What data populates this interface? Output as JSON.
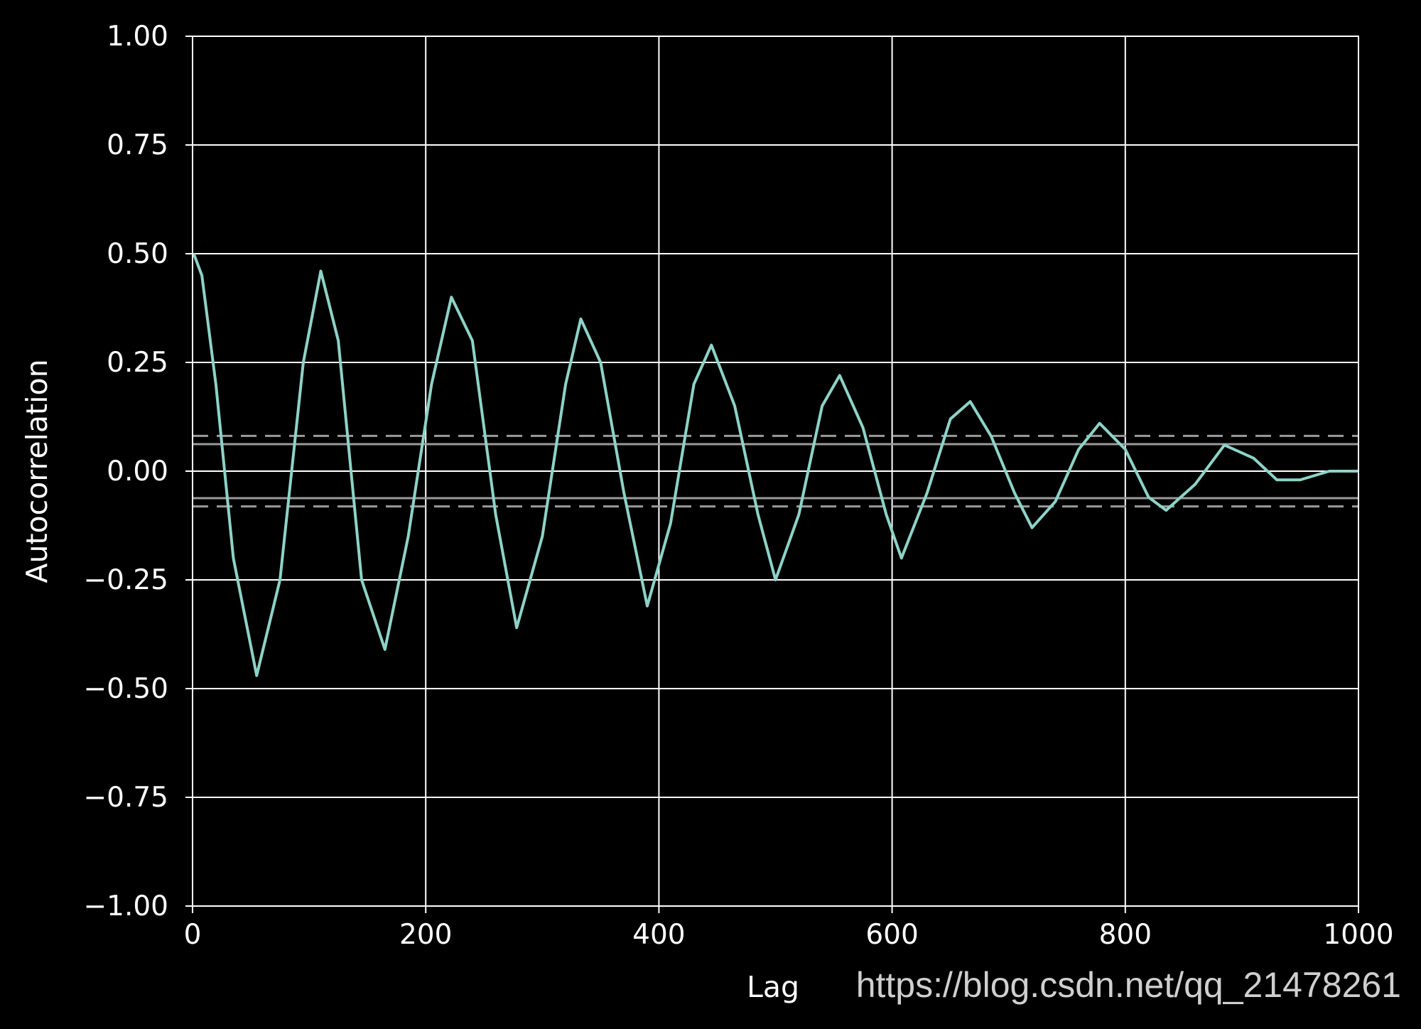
{
  "chart_data": {
    "type": "line",
    "title": "",
    "xlabel": "Lag",
    "ylabel": "Autocorrelation",
    "xlim": [
      0,
      1000
    ],
    "ylim": [
      -1.0,
      1.0
    ],
    "x_ticks": [
      0,
      200,
      400,
      600,
      800,
      1000
    ],
    "x_tick_labels": [
      "0",
      "200",
      "400",
      "600",
      "800",
      "1000"
    ],
    "y_ticks": [
      1.0,
      0.75,
      0.5,
      0.25,
      0.0,
      -0.25,
      -0.5,
      -0.75,
      -1.0
    ],
    "y_tick_labels": [
      "1.00",
      "0.75",
      "0.50",
      "0.25",
      "0.00",
      "−0.25",
      "−0.50",
      "−0.75",
      "−1.00"
    ],
    "grid": true,
    "confidence_bands": {
      "solid": [
        0.062,
        -0.062
      ],
      "dashed": [
        0.081,
        -0.081
      ]
    },
    "series": [
      {
        "color": "#8dd3c7",
        "x": [
          1,
          8,
          20,
          35,
          55,
          75,
          95,
          110,
          125,
          145,
          165,
          185,
          205,
          222,
          240,
          260,
          278,
          300,
          320,
          333,
          350,
          370,
          390,
          410,
          430,
          445,
          465,
          485,
          500,
          520,
          540,
          555,
          575,
          595,
          608,
          630,
          650,
          667,
          685,
          705,
          720,
          740,
          760,
          778,
          800,
          820,
          835,
          860,
          885,
          910,
          930,
          950,
          975,
          1000
        ],
        "y": [
          0.5,
          0.45,
          0.2,
          -0.2,
          -0.47,
          -0.25,
          0.25,
          0.46,
          0.3,
          -0.25,
          -0.41,
          -0.15,
          0.2,
          0.4,
          0.3,
          -0.1,
          -0.36,
          -0.15,
          0.2,
          0.35,
          0.25,
          -0.05,
          -0.31,
          -0.12,
          0.2,
          0.29,
          0.15,
          -0.1,
          -0.25,
          -0.1,
          0.15,
          0.22,
          0.1,
          -0.1,
          -0.2,
          -0.05,
          0.12,
          0.16,
          0.08,
          -0.05,
          -0.13,
          -0.07,
          0.05,
          0.11,
          0.05,
          -0.06,
          -0.09,
          -0.03,
          0.06,
          0.03,
          -0.02,
          -0.02,
          0.0,
          0.0
        ]
      }
    ]
  },
  "watermark": "https://blog.csdn.net/qq_21478261"
}
